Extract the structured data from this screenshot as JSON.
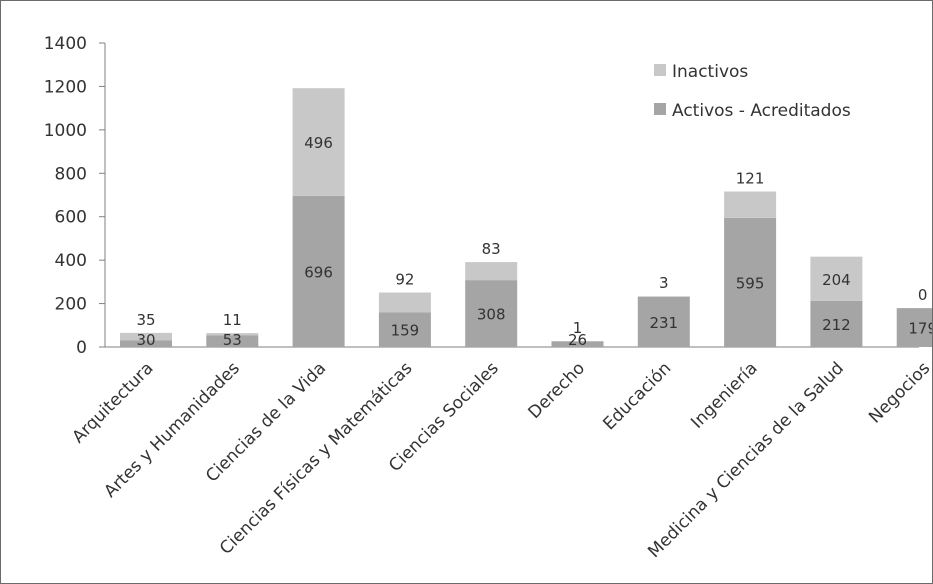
{
  "chart_data": {
    "type": "bar",
    "stacked": true,
    "categories": [
      "Arquitectura",
      "Artes y Humanidades",
      "Ciencias de la Vida",
      "Ciencias Físicas y Matemáticas",
      "Ciencias Sociales",
      "Derecho",
      "Educación",
      "Ingeniería",
      "Medicina y Ciencias de la Salud",
      "Negocios"
    ],
    "series": [
      {
        "name": "Activos - Acreditados",
        "color": "#a5a5a5",
        "values": [
          30,
          53,
          696,
          159,
          308,
          26,
          231,
          595,
          212,
          179
        ]
      },
      {
        "name": "Inactivos",
        "color": "#c8c8c9",
        "values": [
          35,
          11,
          496,
          92,
          83,
          1,
          3,
          121,
          204,
          0
        ]
      }
    ],
    "legend_order": [
      "Inactivos",
      "Activos - Acreditados"
    ],
    "legend_position": "top-right",
    "yticks": [
      "0",
      "200",
      "400",
      "600",
      "800",
      "1000",
      "1200",
      "1400"
    ],
    "ylim": [
      0,
      1400
    ],
    "grid": false
  }
}
